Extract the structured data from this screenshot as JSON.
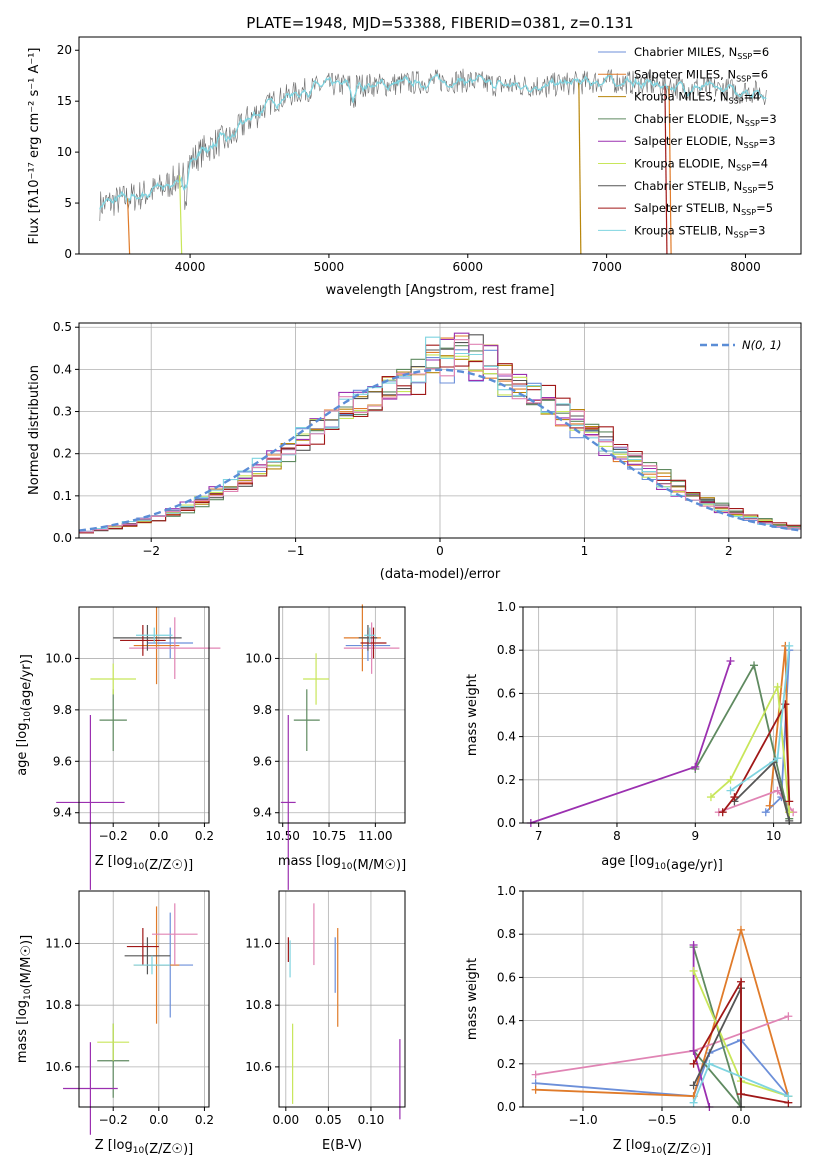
{
  "colors": {
    "chabrier_miles": "#6c8fd9",
    "salpeter_miles": "#e07b2a",
    "kroupa_miles": "#b8860b",
    "chabrier_elodie": "#5f8a60",
    "salpeter_elodie": "#9b30b0",
    "kroupa_elodie": "#c8e65a",
    "chabrier_stelib": "#555555",
    "salpeter_stelib": "#a01818",
    "kroupa_stelib": "#7fd4e0",
    "pink": "#e084b4",
    "gauss": "#5b8dd6",
    "spectrum": "#6a6a6a"
  },
  "chart_data": [
    {
      "type": "line",
      "title": "PLATE=1948, MJD=53388, FIBERID=0381, z=0.131",
      "xlabel": "wavelength [Angstrom, rest frame]",
      "ylabel": "Flux [fλ10⁻¹⁷ erg cm⁻² s⁻¹ A⁻¹]",
      "xlim": [
        3200,
        8400
      ],
      "ylim": [
        0,
        21.3
      ],
      "xticks": [
        "4000",
        "5000",
        "6000",
        "7000",
        "8000"
      ],
      "yticks": [
        "0",
        "5",
        "10",
        "15",
        "20"
      ],
      "legend_position": "right",
      "legend": [
        {
          "sup": "Chabrier MILES, N",
          "sub": "SSP",
          "tail": "=6",
          "color": "chabrier_miles"
        },
        {
          "sup": "Salpeter MILES, N",
          "sub": "SSP",
          "tail": "=6",
          "color": "salpeter_miles"
        },
        {
          "sup": "Kroupa MILES, N",
          "sub": "SSP",
          "tail": "=4",
          "color": "kroupa_miles"
        },
        {
          "sup": "Chabrier ELODIE, N",
          "sub": "SSP",
          "tail": "=3",
          "color": "chabrier_elodie"
        },
        {
          "sup": "Salpeter ELODIE, N",
          "sub": "SSP",
          "tail": "=3",
          "color": "salpeter_elodie"
        },
        {
          "sup": "Kroupa ELODIE, N",
          "sub": "SSP",
          "tail": "=4",
          "color": "kroupa_elodie"
        },
        {
          "sup": "Chabrier STELIB, N",
          "sub": "SSP",
          "tail": "=5",
          "color": "chabrier_stelib"
        },
        {
          "sup": "Salpeter STELIB, N",
          "sub": "SSP",
          "tail": "=5",
          "color": "salpeter_stelib"
        },
        {
          "sup": "Kroupa STELIB, N",
          "sub": "SSP",
          "tail": "=3",
          "color": "kroupa_stelib"
        }
      ],
      "continuum": [
        [
          3350,
          4.8
        ],
        [
          3500,
          5.3
        ],
        [
          3650,
          5.8
        ],
        [
          3800,
          6.5
        ],
        [
          3900,
          7.3
        ],
        [
          4000,
          9.0
        ],
        [
          4100,
          10.2
        ],
        [
          4200,
          11.0
        ],
        [
          4300,
          11.3
        ],
        [
          4400,
          13.0
        ],
        [
          4600,
          15.0
        ],
        [
          4800,
          16.0
        ],
        [
          5000,
          16.6
        ],
        [
          5200,
          16.6
        ],
        [
          5400,
          16.6
        ],
        [
          5600,
          16.8
        ],
        [
          5800,
          17.0
        ],
        [
          6000,
          17.0
        ],
        [
          6200,
          16.6
        ],
        [
          6400,
          16.5
        ],
        [
          6600,
          16.6
        ],
        [
          6800,
          16.8
        ],
        [
          7000,
          17.0
        ],
        [
          7200,
          16.8
        ],
        [
          7500,
          16.4
        ],
        [
          7800,
          16.2
        ],
        [
          8000,
          16.0
        ],
        [
          8150,
          15.8
        ]
      ]
    },
    {
      "type": "bar",
      "xlabel": "(data-model)/error",
      "ylabel": "Normed distribution",
      "xlim": [
        -2.5,
        2.5
      ],
      "ylim": [
        0,
        0.51
      ],
      "xticks": [
        "−2",
        "−1",
        "0",
        "1",
        "2"
      ],
      "yticks": [
        "0.0",
        "0.1",
        "0.2",
        "0.3",
        "0.4",
        "0.5"
      ],
      "bin_width": 0.1,
      "legend_label": "N(0, 1)",
      "legend_position": "top-right"
    },
    {
      "type": "scatter",
      "xlabel": "Z [log10(Z/Z☉)]",
      "ylabel": "age  [log10(age/yr)]",
      "xlim": [
        -0.35,
        0.22
      ],
      "ylim": [
        9.36,
        10.2
      ],
      "xticks": [
        "−0.2",
        "0.0",
        "0.2"
      ],
      "yticks": [
        "9.4",
        "9.6",
        "9.8",
        "10.0"
      ],
      "points": [
        {
          "x": 0.05,
          "y": 10.06,
          "xerr": 0.1,
          "yerr": 0.06,
          "color": "chabrier_miles"
        },
        {
          "x": -0.01,
          "y": 10.05,
          "xerr": 0.1,
          "yerr": 0.15,
          "color": "salpeter_miles"
        },
        {
          "x": 0.07,
          "y": 10.04,
          "xerr": 0.2,
          "yerr": 0.12,
          "color": "pink"
        },
        {
          "x": -0.2,
          "y": 9.76,
          "xerr": 0.06,
          "yerr": 0.12,
          "color": "chabrier_elodie"
        },
        {
          "x": -0.3,
          "y": 9.44,
          "xerr": 0.15,
          "yerr": 0.34,
          "color": "salpeter_elodie"
        },
        {
          "x": -0.2,
          "y": 9.92,
          "xerr": 0.1,
          "yerr": 0.06,
          "color": "kroupa_elodie"
        },
        {
          "x": -0.05,
          "y": 10.08,
          "xerr": 0.15,
          "yerr": 0.05,
          "color": "chabrier_stelib"
        },
        {
          "x": -0.07,
          "y": 10.07,
          "xerr": 0.1,
          "yerr": 0.06,
          "color": "salpeter_stelib"
        },
        {
          "x": -0.02,
          "y": 10.09,
          "xerr": 0.08,
          "yerr": 0.03,
          "color": "kroupa_stelib"
        }
      ]
    },
    {
      "type": "scatter",
      "xlabel": "mass [log10(M/M☉)]",
      "ylabel": "",
      "xlim": [
        10.48,
        11.16
      ],
      "ylim": [
        9.36,
        10.2
      ],
      "xticks": [
        "10.50",
        "10.75",
        "11.00"
      ],
      "yticks": [
        "9.4",
        "9.6",
        "9.8",
        "10.0"
      ],
      "points": [
        {
          "x": 10.96,
          "y": 10.05,
          "xerr": 0.12,
          "yerr": 0.06,
          "color": "chabrier_miles"
        },
        {
          "x": 10.93,
          "y": 10.08,
          "xerr": 0.1,
          "yerr": 0.13,
          "color": "salpeter_miles"
        },
        {
          "x": 10.98,
          "y": 10.04,
          "xerr": 0.15,
          "yerr": 0.1,
          "color": "pink"
        },
        {
          "x": 10.63,
          "y": 9.76,
          "xerr": 0.07,
          "yerr": 0.12,
          "color": "chabrier_elodie"
        },
        {
          "x": 10.53,
          "y": 9.44,
          "xerr": 0.04,
          "yerr": 0.34,
          "color": "salpeter_elodie"
        },
        {
          "x": 10.68,
          "y": 9.92,
          "xerr": 0.07,
          "yerr": 0.1,
          "color": "kroupa_elodie"
        },
        {
          "x": 10.96,
          "y": 10.08,
          "xerr": 0.05,
          "yerr": 0.05,
          "color": "chabrier_stelib"
        },
        {
          "x": 10.99,
          "y": 10.06,
          "xerr": 0.07,
          "yerr": 0.06,
          "color": "salpeter_stelib"
        },
        {
          "x": 10.97,
          "y": 10.09,
          "xerr": 0.03,
          "yerr": 0.03,
          "color": "kroupa_stelib"
        }
      ]
    },
    {
      "type": "line",
      "xlabel": "age  [log10(age/yr)]",
      "ylabel": "mass weight",
      "xlim": [
        6.8,
        10.35
      ],
      "ylim": [
        0,
        1
      ],
      "xticks": [
        "7",
        "8",
        "9",
        "10"
      ],
      "yticks": [
        "0.0",
        "0.2",
        "0.4",
        "0.6",
        "0.8",
        "1.0"
      ],
      "series": [
        {
          "color": "chabrier_miles",
          "points": [
            [
              9.9,
              0.05
            ],
            [
              10.1,
              0.12
            ],
            [
              10.2,
              0.8
            ]
          ]
        },
        {
          "color": "salpeter_miles",
          "points": [
            [
              9.95,
              0.08
            ],
            [
              10.15,
              0.82
            ],
            [
              10.2,
              0.05
            ]
          ]
        },
        {
          "color": "pink",
          "points": [
            [
              9.3,
              0.05
            ],
            [
              10.05,
              0.15
            ],
            [
              10.25,
              0.05
            ]
          ]
        },
        {
          "color": "chabrier_elodie",
          "points": [
            [
              9.0,
              0.25
            ],
            [
              9.75,
              0.73
            ],
            [
              10.2,
              0.02
            ]
          ]
        },
        {
          "color": "salpeter_elodie",
          "points": [
            [
              6.9,
              0.0
            ],
            [
              9.0,
              0.26
            ],
            [
              9.45,
              0.75
            ]
          ]
        },
        {
          "color": "kroupa_elodie",
          "points": [
            [
              9.2,
              0.12
            ],
            [
              9.45,
              0.2
            ],
            [
              10.05,
              0.63
            ],
            [
              10.2,
              0.05
            ]
          ]
        },
        {
          "color": "chabrier_stelib",
          "points": [
            [
              9.5,
              0.1
            ],
            [
              10.0,
              0.28
            ],
            [
              10.2,
              0.01
            ]
          ]
        },
        {
          "color": "salpeter_stelib",
          "points": [
            [
              9.35,
              0.05
            ],
            [
              9.5,
              0.12
            ],
            [
              10.15,
              0.55
            ],
            [
              10.2,
              0.1
            ]
          ]
        },
        {
          "color": "kroupa_stelib",
          "points": [
            [
              9.45,
              0.15
            ],
            [
              10.05,
              0.3
            ],
            [
              10.2,
              0.82
            ]
          ]
        }
      ]
    },
    {
      "type": "scatter",
      "xlabel": "Z [log10(Z/Z☉)]",
      "ylabel": "mass [log10(M/M☉)]",
      "xlim": [
        -0.35,
        0.22
      ],
      "ylim": [
        10.47,
        11.17
      ],
      "xticks": [
        "−0.2",
        "0.0",
        "0.2"
      ],
      "yticks": [
        "10.6",
        "10.8",
        "11.0"
      ],
      "points": [
        {
          "x": 0.05,
          "y": 10.93,
          "xerr": 0.1,
          "yerr": 0.17,
          "color": "chabrier_miles"
        },
        {
          "x": -0.01,
          "y": 10.93,
          "xerr": 0.1,
          "yerr": 0.19,
          "color": "salpeter_miles"
        },
        {
          "x": 0.07,
          "y": 11.03,
          "xerr": 0.1,
          "yerr": 0.1,
          "color": "pink"
        },
        {
          "x": -0.2,
          "y": 10.62,
          "xerr": 0.07,
          "yerr": 0.12,
          "color": "chabrier_elodie"
        },
        {
          "x": -0.3,
          "y": 10.53,
          "xerr": 0.12,
          "yerr": 0.15,
          "color": "salpeter_elodie"
        },
        {
          "x": -0.2,
          "y": 10.68,
          "xerr": 0.07,
          "yerr": 0.06,
          "color": "kroupa_elodie"
        },
        {
          "x": -0.05,
          "y": 10.96,
          "xerr": 0.1,
          "yerr": 0.06,
          "color": "chabrier_stelib"
        },
        {
          "x": -0.07,
          "y": 10.99,
          "xerr": 0.07,
          "yerr": 0.06,
          "color": "salpeter_stelib"
        },
        {
          "x": -0.03,
          "y": 10.93,
          "xerr": 0.08,
          "yerr": 0.03,
          "color": "kroupa_stelib"
        }
      ]
    },
    {
      "type": "scatter",
      "xlabel": "E(B-V)",
      "ylabel": "",
      "xlim": [
        -0.008,
        0.14
      ],
      "ylim": [
        10.47,
        11.17
      ],
      "xticks": [
        "0.00",
        "0.05",
        "0.10"
      ],
      "yticks": [
        "10.6",
        "10.8",
        "11.0"
      ],
      "points": [
        {
          "x": 0.003,
          "y": 10.98,
          "xerr": 0,
          "yerr": 0.04,
          "color": "salpeter_stelib"
        },
        {
          "x": 0.005,
          "y": 10.95,
          "xerr": 0,
          "yerr": 0.06,
          "color": "kroupa_stelib"
        },
        {
          "x": 0.008,
          "y": 10.61,
          "xerr": 0,
          "yerr": 0.13,
          "color": "kroupa_elodie"
        },
        {
          "x": 0.033,
          "y": 11.03,
          "xerr": 0,
          "yerr": 0.1,
          "color": "pink"
        },
        {
          "x": 0.058,
          "y": 10.93,
          "xerr": 0,
          "yerr": 0.09,
          "color": "chabrier_miles"
        },
        {
          "x": 0.061,
          "y": 10.89,
          "xerr": 0,
          "yerr": 0.16,
          "color": "salpeter_miles"
        },
        {
          "x": 0.134,
          "y": 10.56,
          "xerr": 0,
          "yerr": 0.13,
          "color": "salpeter_elodie"
        }
      ]
    },
    {
      "type": "line",
      "xlabel": "Z [log10(Z/Z☉)]",
      "ylabel": "mass weight",
      "xlim": [
        -1.38,
        0.38
      ],
      "ylim": [
        0,
        1
      ],
      "xticks": [
        "−1.0",
        "−0.5",
        "0.0"
      ],
      "yticks": [
        "0.0",
        "0.2",
        "0.4",
        "0.6",
        "0.8",
        "1.0"
      ],
      "series": [
        {
          "color": "chabrier_miles",
          "points": [
            [
              -1.3,
              0.11
            ],
            [
              -0.3,
              0.05
            ],
            [
              -0.2,
              0.25
            ],
            [
              0.0,
              0.31
            ],
            [
              0.3,
              0.05
            ]
          ]
        },
        {
          "color": "salpeter_miles",
          "points": [
            [
              -1.3,
              0.08
            ],
            [
              -0.3,
              0.05
            ],
            [
              0.0,
              0.82
            ],
            [
              0.3,
              0.05
            ]
          ]
        },
        {
          "color": "pink",
          "points": [
            [
              -1.3,
              0.15
            ],
            [
              -0.3,
              0.26
            ],
            [
              0.3,
              0.42
            ]
          ]
        },
        {
          "color": "chabrier_elodie",
          "points": [
            [
              -0.3,
              0.74
            ],
            [
              0.0,
              0.0
            ],
            [
              -0.3,
              0.26
            ]
          ]
        },
        {
          "color": "salpeter_elodie",
          "points": [
            [
              -0.3,
              0.75
            ],
            [
              -0.3,
              0.26
            ],
            [
              -0.2,
              0.0
            ]
          ]
        },
        {
          "color": "kroupa_elodie",
          "points": [
            [
              -0.3,
              0.63
            ],
            [
              0.0,
              0.12
            ],
            [
              0.3,
              0.05
            ]
          ]
        },
        {
          "color": "chabrier_stelib",
          "points": [
            [
              -0.3,
              0.1
            ],
            [
              0.0,
              0.55
            ],
            [
              0.0,
              0.0
            ]
          ]
        },
        {
          "color": "salpeter_stelib",
          "points": [
            [
              -0.3,
              0.2
            ],
            [
              0.0,
              0.58
            ],
            [
              0.0,
              0.06
            ],
            [
              0.3,
              0.02
            ]
          ]
        },
        {
          "color": "kroupa_stelib",
          "points": [
            [
              -0.3,
              0.02
            ],
            [
              -0.2,
              0.2
            ],
            [
              0.3,
              0.05
            ]
          ]
        }
      ]
    }
  ]
}
